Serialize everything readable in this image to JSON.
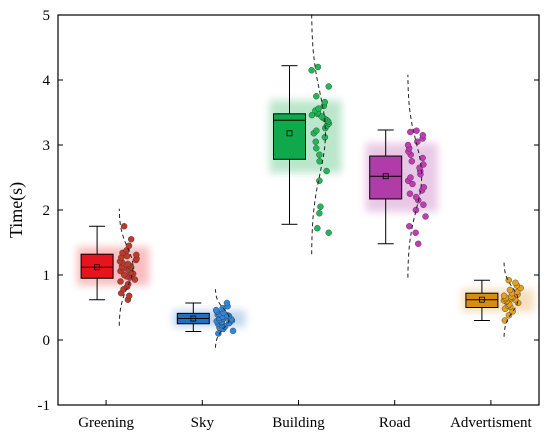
{
  "chart_data": {
    "type": "box",
    "ylabel": "Time(s)",
    "xlabel": "",
    "ylim": [
      -1,
      5
    ],
    "yticks": [
      -1,
      0,
      1,
      2,
      3,
      4,
      5
    ],
    "categories": [
      "Greening",
      "Sky",
      "Building",
      "Road",
      "Advertisment"
    ],
    "series": [
      {
        "category": "Greening",
        "color": "#e8141d",
        "point_color": "#c0392b",
        "min": 0.62,
        "q1": 0.95,
        "median": 1.12,
        "q3": 1.32,
        "max": 1.75,
        "mean": 1.12,
        "points": [
          0.62,
          0.68,
          0.72,
          0.78,
          0.82,
          0.86,
          0.9,
          0.93,
          0.96,
          0.98,
          1.0,
          1.02,
          1.04,
          1.06,
          1.08,
          1.1,
          1.12,
          1.13,
          1.15,
          1.17,
          1.19,
          1.21,
          1.23,
          1.25,
          1.27,
          1.29,
          1.31,
          1.34,
          1.38,
          1.45,
          1.55,
          1.75
        ],
        "dist": {
          "mean": 1.12,
          "sd": 0.3
        }
      },
      {
        "category": "Sky",
        "color": "#1f6fc5",
        "point_color": "#2e86de",
        "min": 0.13,
        "q1": 0.25,
        "median": 0.33,
        "q3": 0.41,
        "max": 0.57,
        "mean": 0.33,
        "points": [
          0.1,
          0.14,
          0.17,
          0.19,
          0.21,
          0.23,
          0.25,
          0.26,
          0.27,
          0.28,
          0.29,
          0.3,
          0.31,
          0.32,
          0.33,
          0.34,
          0.35,
          0.36,
          0.37,
          0.38,
          0.39,
          0.4,
          0.42,
          0.44,
          0.46,
          0.49,
          0.52,
          0.57
        ],
        "dist": {
          "mean": 0.33,
          "sd": 0.15
        }
      },
      {
        "category": "Building",
        "color": "#0fa84a",
        "point_color": "#1db954",
        "min": 1.78,
        "q1": 2.78,
        "median": 3.38,
        "q3": 3.48,
        "max": 4.22,
        "mean": 3.18,
        "points": [
          1.65,
          1.72,
          1.95,
          2.05,
          2.45,
          2.6,
          2.75,
          2.85,
          2.95,
          3.05,
          3.12,
          3.18,
          3.22,
          3.26,
          3.3,
          3.33,
          3.36,
          3.38,
          3.4,
          3.42,
          3.44,
          3.46,
          3.48,
          3.5,
          3.53,
          3.56,
          3.6,
          3.66,
          3.75,
          3.9,
          4.15,
          4.2
        ],
        "dist": {
          "mean": 3.18,
          "sd": 0.62
        }
      },
      {
        "category": "Road",
        "color": "#b03da7",
        "point_color": "#c23bb5",
        "min": 1.48,
        "q1": 2.17,
        "median": 2.52,
        "q3": 2.83,
        "max": 3.23,
        "mean": 2.52,
        "points": [
          1.48,
          1.65,
          1.75,
          1.9,
          2.0,
          2.08,
          2.15,
          2.2,
          2.25,
          2.3,
          2.35,
          2.4,
          2.45,
          2.5,
          2.55,
          2.6,
          2.65,
          2.7,
          2.75,
          2.8,
          2.85,
          2.9,
          2.95,
          3.0,
          3.05,
          3.1,
          3.15,
          3.2,
          3.22
        ],
        "dist": {
          "mean": 2.52,
          "sd": 0.52
        }
      },
      {
        "category": "Advertisment",
        "color": "#d98c12",
        "point_color": "#e6a020",
        "min": 0.3,
        "q1": 0.5,
        "median": 0.62,
        "q3": 0.72,
        "max": 0.92,
        "mean": 0.62,
        "points": [
          0.3,
          0.38,
          0.44,
          0.48,
          0.51,
          0.53,
          0.55,
          0.57,
          0.59,
          0.6,
          0.61,
          0.62,
          0.63,
          0.64,
          0.65,
          0.66,
          0.67,
          0.68,
          0.7,
          0.72,
          0.74,
          0.77,
          0.8,
          0.84,
          0.88,
          0.92
        ],
        "dist": {
          "mean": 0.62,
          "sd": 0.19
        }
      }
    ]
  }
}
